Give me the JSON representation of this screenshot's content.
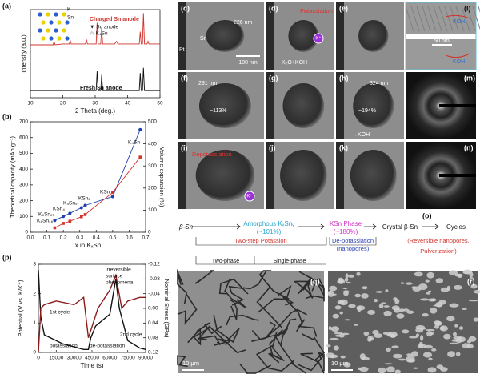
{
  "panel_labels": [
    "(a)",
    "(b)",
    "(p)",
    "(c)",
    "(d)",
    "(e)",
    "(l)",
    "(f)",
    "(g)",
    "(h)",
    "(m)",
    "(i)",
    "(j)",
    "(k)",
    "(n)",
    "(o)",
    "(q)",
    "(r)"
  ],
  "tem_texts": [
    "226 nm",
    "Sn",
    "Pt",
    "100 nm",
    "Potassiation",
    "K⁺",
    "K₂O+KOH",
    "291 nm",
    "~113%",
    "324 nm",
    "~194%",
    "→KOH",
    "Depotassiation",
    "K⁺",
    "KOH",
    "50 nm",
    "KOH"
  ],
  "scheme": [
    "β-Sn",
    "Amorphous KₓSnᵧ",
    "(~101%)",
    "KSn Phase",
    "(~180%)",
    "Crystal β-Sn",
    "Cycles",
    "Two-step Potassion",
    "De-potassiation",
    "(nanopores)",
    "(Reversible nanopores,",
    "Pulverization)",
    "Two-phase",
    "Single-phase"
  ],
  "sem_texts": [
    "10 μm",
    "10 μm"
  ],
  "chart_data": [
    {
      "type": "line",
      "xlabel": "2 Theta (deg.)",
      "ylabel": "Intensity (a.u.)",
      "xlim": [
        10,
        50
      ],
      "xticks": [
        10,
        20,
        30,
        40,
        50
      ],
      "ylim": [
        0,
        100
      ],
      "series": [
        {
          "name": "Charged Sn anode",
          "color": "#d0342c",
          "x": [
            10,
            15,
            17,
            17.3,
            17.6,
            20,
            22,
            22.3,
            22.6,
            27,
            27.3,
            27.6,
            30.3,
            30.6,
            30.9,
            31.7,
            32,
            32.3,
            36,
            36.6,
            37,
            41,
            43.6,
            43.9,
            44.2,
            44.6,
            44.9,
            45.2,
            46,
            46.3,
            46.6,
            50
          ],
          "values": [
            60,
            60,
            60,
            64,
            60,
            61,
            61,
            65,
            61,
            61,
            66,
            61,
            61,
            85,
            61,
            61,
            80,
            61,
            61,
            64,
            61,
            61,
            61,
            75,
            61,
            61,
            96,
            61,
            61,
            64,
            61,
            61
          ]
        },
        {
          "name": "Fresh Sn anode",
          "color": "#111111",
          "x": [
            10,
            30.3,
            30.6,
            30.9,
            31.7,
            32,
            32.3,
            43.6,
            43.9,
            44.2,
            44.6,
            44.9,
            45.2,
            50
          ],
          "values": [
            8,
            8,
            30,
            8,
            8,
            26,
            8,
            8,
            28,
            8,
            8,
            34,
            8,
            8
          ]
        }
      ],
      "annotations": [
        "▼ Sn anode",
        "☆ K₄Sn",
        "K",
        "Sn"
      ]
    },
    {
      "type": "line",
      "xlabel": "x in KₓSn",
      "ylabel": "Theoretical capacity (mAh g⁻¹)",
      "y2label": "Volume expansion (%)",
      "xlim": [
        0,
        0.7
      ],
      "xticks": [
        {
          "value": 0,
          "label": "0.0"
        },
        0.1,
        0.2,
        0.3,
        0.4,
        0.5,
        0.6,
        0.7
      ],
      "ylim": [
        0,
        700
      ],
      "yticks": [
        0,
        100,
        200,
        300,
        400,
        500,
        600,
        700
      ],
      "y2lim": [
        0,
        500
      ],
      "y2ticks": [
        0,
        100,
        200,
        300,
        400,
        500
      ],
      "series": [
        {
          "name": "Theoretical capacity",
          "color": "#1f3fb0",
          "x": [
            0.148,
            0.2,
            0.24,
            0.31,
            0.333,
            0.5,
            0.667
          ],
          "values": [
            75,
            100,
            120,
            155,
            170,
            226,
            650
          ]
        },
        {
          "name": "Volume expansion",
          "color": "#d0342c",
          "axis": "y2",
          "x": [
            0.148,
            0.2,
            0.24,
            0.31,
            0.333,
            0.5,
            0.667
          ],
          "values": [
            20,
            40,
            50,
            70,
            80,
            180,
            340
          ]
        }
      ],
      "annotations": [
        "K₄Sn",
        "KSn",
        "KSn₂",
        "K₄Sn₉",
        "KSn₄",
        "K₈Sn₂₅",
        "K₈Sn₄₆"
      ]
    },
    {
      "type": "line",
      "xlabel": "Time (s)",
      "ylabel": "Potential (V vs. K/K⁺)",
      "y2label": "Nominal Stress (GPa)",
      "xlim": [
        0,
        90000
      ],
      "xticks": [
        0,
        15000,
        30000,
        45000,
        60000,
        75000,
        90000
      ],
      "ylim": [
        0,
        3
      ],
      "yticks": [
        0,
        1,
        2,
        3
      ],
      "y2lim": [
        0.12,
        -0.12
      ],
      "y2ticks": [
        -0.12,
        -0.08,
        -0.04,
        {
          "value": 0,
          "label": "0.00"
        },
        0.04,
        0.08,
        0.12
      ],
      "series": [
        {
          "name": "Potential",
          "color": "#111111",
          "x": [
            0,
            2000,
            5000,
            20000,
            38000,
            42000,
            44000,
            48000,
            60000,
            65000,
            68000,
            75000,
            85000,
            90000
          ],
          "values": [
            2.8,
            1.2,
            0.6,
            0.3,
            0.1,
            0.1,
            0.5,
            0.9,
            1.3,
            2.5,
            1.5,
            0.4,
            0.15,
            0.1
          ]
        },
        {
          "name": "Nominal Stress",
          "color": "#8b1a1a",
          "axis": "y2",
          "x": [
            0,
            2000,
            5000,
            15000,
            30000,
            38000,
            42000,
            50000,
            60000,
            65000,
            70000,
            75000,
            85000,
            90000
          ],
          "values": [
            0.12,
            0,
            -0.01,
            -0.02,
            -0.01,
            -0.03,
            0.08,
            0,
            -0.05,
            -0.09,
            0,
            -0.02,
            -0.03,
            -0.03
          ]
        }
      ],
      "annotations": [
        "irreversible",
        "surface",
        "phenomena",
        "1st cycle",
        "2nd cycle",
        "potassiation",
        "de-potassiation"
      ]
    }
  ]
}
